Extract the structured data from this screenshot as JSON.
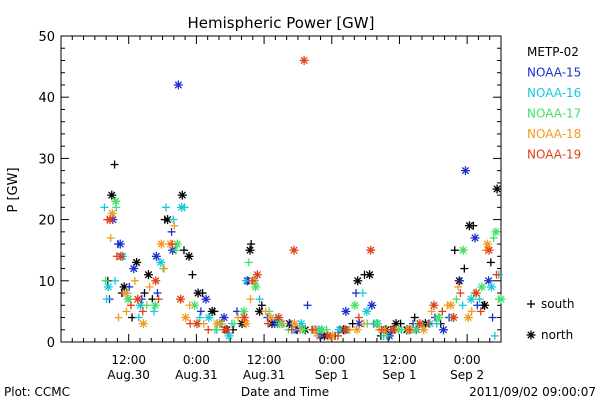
{
  "chart_data": {
    "type": "scatter",
    "title": "Hemispheric Power [GW]",
    "xlabel": "Date and Time",
    "ylabel": "P [GW]",
    "ylim": [
      0,
      50
    ],
    "yticks": [
      0,
      10,
      20,
      30,
      40,
      50
    ],
    "xlim": [
      0,
      78
    ],
    "x_unit": "hours since 2011-08-30 00:00 UT",
    "xticks": [
      {
        "x": 12,
        "top": "12:00",
        "bottom": "Aug.30"
      },
      {
        "x": 24,
        "top": "0:00",
        "bottom": "Aug.31"
      },
      {
        "x": 36,
        "top": "12:00",
        "bottom": "Aug.31"
      },
      {
        "x": 48,
        "top": "0:00",
        "bottom": "Sep 1"
      },
      {
        "x": 60,
        "top": "12:00",
        "bottom": "Sep 1"
      },
      {
        "x": 72,
        "top": "0:00",
        "bottom": "Sep 2"
      }
    ],
    "grid": false,
    "legend_position": "right",
    "marker_legend": [
      {
        "symbol": "+",
        "label": "south"
      },
      {
        "symbol": "*",
        "label": "north"
      }
    ],
    "footer_left": "Plot: CCMC",
    "footer_right": "2011/09/02 09:00:07",
    "series": [
      {
        "name": "METP-02",
        "color": "#000000",
        "south": [
          [
            8.3,
            10
          ],
          [
            9.5,
            29
          ],
          [
            10.8,
            8
          ],
          [
            12.6,
            4
          ],
          [
            14.8,
            8
          ],
          [
            16.2,
            7
          ],
          [
            18.4,
            20
          ],
          [
            21.8,
            15
          ],
          [
            23.3,
            11
          ],
          [
            25.1,
            8
          ],
          [
            27.2,
            5
          ],
          [
            30.5,
            2
          ],
          [
            33.7,
            16
          ],
          [
            35.6,
            6
          ],
          [
            38.4,
            3
          ],
          [
            41.7,
            2
          ],
          [
            45.2,
            2
          ],
          [
            48.6,
            1
          ],
          [
            51.7,
            3
          ],
          [
            53.8,
            11
          ],
          [
            56.7,
            1
          ],
          [
            58.5,
            2
          ],
          [
            60.2,
            3
          ],
          [
            62.7,
            4
          ],
          [
            67.3,
            3
          ],
          [
            69.8,
            15
          ],
          [
            71.5,
            12
          ],
          [
            73.1,
            19
          ],
          [
            74.8,
            6
          ],
          [
            76.2,
            13
          ]
        ],
        "north": [
          [
            9,
            24
          ],
          [
            11.2,
            9
          ],
          [
            13.4,
            13
          ],
          [
            15.5,
            11
          ],
          [
            18.9,
            20
          ],
          [
            21.5,
            24
          ],
          [
            22.7,
            14
          ],
          [
            24.3,
            8
          ],
          [
            26.8,
            5
          ],
          [
            29.4,
            2
          ],
          [
            32.1,
            3
          ],
          [
            33.5,
            15
          ],
          [
            35.2,
            5
          ],
          [
            37.4,
            3
          ],
          [
            40.5,
            3
          ],
          [
            43.3,
            2
          ],
          [
            46.7,
            1
          ],
          [
            50.1,
            2
          ],
          [
            52.6,
            10
          ],
          [
            54.7,
            11
          ],
          [
            57.6,
            2
          ],
          [
            59.4,
            3
          ],
          [
            61.3,
            2
          ],
          [
            64.6,
            3
          ],
          [
            70.6,
            10
          ],
          [
            72.4,
            19
          ],
          [
            75.1,
            6
          ],
          [
            77.3,
            25
          ]
        ]
      },
      {
        "name": "NOAA-15",
        "color": "#1a2fd0",
        "south": [
          [
            8.6,
            7
          ],
          [
            10.1,
            16
          ],
          [
            12.1,
            9
          ],
          [
            14.3,
            7
          ],
          [
            17.1,
            8
          ],
          [
            19.6,
            18
          ],
          [
            24.8,
            5
          ],
          [
            28.4,
            3
          ],
          [
            31.2,
            5
          ],
          [
            33.2,
            10
          ],
          [
            36.6,
            4
          ],
          [
            40.6,
            3
          ],
          [
            43.7,
            6
          ],
          [
            46.2,
            2
          ],
          [
            49.3,
            2
          ],
          [
            52.3,
            8
          ],
          [
            55.4,
            3
          ],
          [
            59.1,
            2
          ],
          [
            62.4,
            3
          ],
          [
            66.3,
            4
          ],
          [
            68.8,
            4
          ],
          [
            70.7,
            10
          ],
          [
            73.8,
            6
          ],
          [
            76.5,
            4
          ]
        ],
        "north": [
          [
            9.2,
            20
          ],
          [
            10.5,
            16
          ],
          [
            12.9,
            12
          ],
          [
            16.9,
            14
          ],
          [
            19.8,
            15
          ],
          [
            20.8,
            42
          ],
          [
            25.7,
            7
          ],
          [
            28.9,
            4
          ],
          [
            33,
            10
          ],
          [
            37.9,
            3
          ],
          [
            41.9,
            2
          ],
          [
            45.9,
            1
          ],
          [
            50.5,
            5
          ],
          [
            52.9,
            3
          ],
          [
            55.1,
            6
          ],
          [
            58.2,
            1
          ],
          [
            63,
            2
          ],
          [
            67.8,
            2
          ],
          [
            71.7,
            28
          ],
          [
            73.4,
            17
          ],
          [
            75.8,
            10
          ]
        ]
      },
      {
        "name": "NOAA-16",
        "color": "#18c8d8",
        "south": [
          [
            7.7,
            22
          ],
          [
            8.1,
            7
          ],
          [
            9.6,
            10
          ],
          [
            11.8,
            8
          ],
          [
            13.8,
            4
          ],
          [
            16.5,
            5
          ],
          [
            18.6,
            22
          ],
          [
            19.9,
            20
          ],
          [
            21.9,
            22
          ],
          [
            24.6,
            4
          ],
          [
            27.6,
            2
          ],
          [
            30.3,
            3
          ],
          [
            32.8,
            10
          ],
          [
            35.2,
            7
          ],
          [
            38.1,
            4
          ],
          [
            41.2,
            2
          ],
          [
            44.4,
            2
          ],
          [
            47.7,
            1
          ],
          [
            50.7,
            2
          ],
          [
            53.5,
            8
          ],
          [
            57.2,
            1
          ],
          [
            60.4,
            2
          ],
          [
            63.2,
            3
          ],
          [
            66.6,
            3
          ],
          [
            69.3,
            4
          ],
          [
            71.2,
            6
          ],
          [
            74.2,
            7
          ],
          [
            76.9,
            1
          ],
          [
            77.6,
            11
          ]
        ],
        "north": [
          [
            8.4,
            9
          ],
          [
            10.9,
            14
          ],
          [
            14.1,
            6
          ],
          [
            17.7,
            13
          ],
          [
            21.4,
            22
          ],
          [
            26.2,
            4
          ],
          [
            29.8,
            1
          ],
          [
            34.3,
            10
          ],
          [
            39.2,
            3
          ],
          [
            42.6,
            3
          ],
          [
            45.7,
            2
          ],
          [
            49.4,
            2
          ],
          [
            54.2,
            5
          ],
          [
            56.1,
            3
          ],
          [
            61.9,
            2
          ],
          [
            65.4,
            3
          ],
          [
            72.7,
            7
          ],
          [
            76.3,
            9
          ]
        ]
      },
      {
        "name": "NOAA-17",
        "color": "#44e06a",
        "south": [
          [
            7.9,
            10
          ],
          [
            9.8,
            22
          ],
          [
            12.3,
            7
          ],
          [
            15.2,
            6
          ],
          [
            18.1,
            12
          ],
          [
            20.4,
            15
          ],
          [
            24.4,
            3
          ],
          [
            27.3,
            2
          ],
          [
            30.7,
            3
          ],
          [
            33.3,
            13
          ],
          [
            36.9,
            5
          ],
          [
            40.3,
            2
          ],
          [
            43.2,
            2
          ],
          [
            47.1,
            2
          ],
          [
            50.9,
            2
          ],
          [
            54.3,
            3
          ],
          [
            57.7,
            1
          ],
          [
            61.2,
            2
          ],
          [
            64.1,
            3
          ],
          [
            67.1,
            4
          ],
          [
            70.1,
            7
          ],
          [
            73.3,
            8
          ],
          [
            76.7,
            17
          ],
          [
            77.6,
            7
          ]
        ],
        "north": [
          [
            9.7,
            23
          ],
          [
            11.9,
            7
          ],
          [
            16.7,
            6
          ],
          [
            20.6,
            16
          ],
          [
            23.7,
            6
          ],
          [
            28.1,
            3
          ],
          [
            32.4,
            5
          ],
          [
            34.5,
            9
          ],
          [
            38.8,
            3
          ],
          [
            42.8,
            2
          ],
          [
            46.3,
            2
          ],
          [
            52.1,
            6
          ],
          [
            55.9,
            3
          ],
          [
            59.8,
            2
          ],
          [
            62.9,
            2
          ],
          [
            66.9,
            4
          ],
          [
            71.3,
            15
          ],
          [
            74.6,
            9
          ],
          [
            77.1,
            18
          ],
          [
            78,
            7
          ]
        ]
      },
      {
        "name": "NOAA-18",
        "color": "#f49a22",
        "south": [
          [
            8.8,
            17
          ],
          [
            10.2,
            4
          ],
          [
            11.6,
            5
          ],
          [
            13.1,
            10
          ],
          [
            15.7,
            9
          ],
          [
            18.3,
            12
          ],
          [
            20.1,
            19
          ],
          [
            22.8,
            6
          ],
          [
            25.3,
            3
          ],
          [
            28.6,
            3
          ],
          [
            31.4,
            4
          ],
          [
            33.6,
            7
          ],
          [
            36.3,
            5
          ],
          [
            39.4,
            3
          ],
          [
            42.3,
            2
          ],
          [
            45.4,
            1
          ],
          [
            48.4,
            1
          ],
          [
            51.2,
            2
          ],
          [
            53.7,
            3
          ],
          [
            56.4,
            2
          ],
          [
            59.3,
            2
          ],
          [
            62.1,
            2
          ],
          [
            65.7,
            5
          ],
          [
            68.5,
            6
          ],
          [
            70.4,
            9
          ],
          [
            72.8,
            5
          ],
          [
            75.3,
            15
          ]
        ],
        "north": [
          [
            9.1,
            21
          ],
          [
            11.5,
            8
          ],
          [
            14.6,
            3
          ],
          [
            17.8,
            16
          ],
          [
            19.4,
            16
          ],
          [
            22.1,
            4
          ],
          [
            27.7,
            3
          ],
          [
            32.8,
            3
          ],
          [
            34.1,
            10
          ],
          [
            37.2,
            4
          ],
          [
            41.4,
            3
          ],
          [
            44.9,
            2
          ],
          [
            48.1,
            1
          ],
          [
            52.5,
            2
          ],
          [
            57.3,
            2
          ],
          [
            61.6,
            2
          ],
          [
            64.3,
            2
          ],
          [
            69.1,
            6
          ],
          [
            72.2,
            4
          ],
          [
            75.6,
            16
          ]
        ]
      },
      {
        "name": "NOAA-19",
        "color": "#e04018",
        "south": [
          [
            8.2,
            20
          ],
          [
            9.9,
            14
          ],
          [
            12.4,
            6
          ],
          [
            14.5,
            5
          ],
          [
            17.3,
            7
          ],
          [
            19.7,
            16
          ],
          [
            22.9,
            3
          ],
          [
            26.1,
            2
          ],
          [
            29.6,
            2
          ],
          [
            33.9,
            10
          ],
          [
            36.7,
            3
          ],
          [
            40.9,
            2
          ],
          [
            44.6,
            2
          ],
          [
            49.1,
            1
          ],
          [
            52.8,
            4
          ],
          [
            56.8,
            2
          ],
          [
            61.8,
            2
          ],
          [
            65.2,
            3
          ],
          [
            67.6,
            5
          ],
          [
            70.8,
            8
          ],
          [
            74.4,
            5
          ],
          [
            77.2,
            11
          ]
        ],
        "north": [
          [
            8.7,
            20
          ],
          [
            10.6,
            14
          ],
          [
            13.6,
            7
          ],
          [
            16.8,
            10
          ],
          [
            21.2,
            7
          ],
          [
            24.1,
            3
          ],
          [
            29.1,
            2
          ],
          [
            32.5,
            4
          ],
          [
            34.8,
            11
          ],
          [
            38.6,
            4
          ],
          [
            41.3,
            15
          ],
          [
            43.1,
            46
          ],
          [
            47.3,
            1
          ],
          [
            50.4,
            2
          ],
          [
            54.9,
            15
          ],
          [
            58.8,
            2
          ],
          [
            63.6,
            3
          ],
          [
            66.1,
            6
          ],
          [
            69.6,
            4
          ],
          [
            73.6,
            8
          ],
          [
            75.9,
            15
          ]
        ]
      }
    ]
  }
}
